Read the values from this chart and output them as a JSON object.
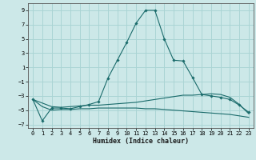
{
  "xlabel": "Humidex (Indice chaleur)",
  "bg_color": "#cce8e8",
  "grid_color": "#aad4d4",
  "line_color": "#1a6b6b",
  "xlim": [
    -0.5,
    23.5
  ],
  "ylim": [
    -7.5,
    10.0
  ],
  "yticks": [
    -7,
    -5,
    -3,
    -1,
    1,
    3,
    5,
    7,
    9
  ],
  "xticks": [
    0,
    1,
    2,
    3,
    4,
    5,
    6,
    7,
    8,
    9,
    10,
    11,
    12,
    13,
    14,
    15,
    16,
    17,
    18,
    19,
    20,
    21,
    22,
    23
  ],
  "main_line": [
    -3.5,
    -6.5,
    -4.7,
    -4.7,
    -4.8,
    -4.5,
    -4.2,
    -3.8,
    -0.5,
    2.0,
    4.5,
    7.2,
    9.0,
    9.0,
    5.0,
    2.0,
    1.9,
    -0.4,
    -2.8,
    -3.0,
    -3.2,
    -3.5,
    -4.3,
    -5.3
  ],
  "upper_line": [
    -3.5,
    -4.0,
    -4.5,
    -4.6,
    -4.5,
    -4.4,
    -4.3,
    -4.3,
    -4.2,
    -4.1,
    -4.0,
    -3.9,
    -3.7,
    -3.5,
    -3.3,
    -3.1,
    -2.9,
    -2.9,
    -2.8,
    -2.7,
    -2.8,
    -3.2,
    -4.2,
    -5.5
  ],
  "lower_line": [
    -3.5,
    -4.5,
    -5.0,
    -4.9,
    -4.9,
    -4.8,
    -4.8,
    -4.7,
    -4.7,
    -4.7,
    -4.7,
    -4.7,
    -4.8,
    -4.8,
    -4.9,
    -5.0,
    -5.1,
    -5.2,
    -5.3,
    -5.4,
    -5.5,
    -5.6,
    -5.8,
    -6.0
  ]
}
